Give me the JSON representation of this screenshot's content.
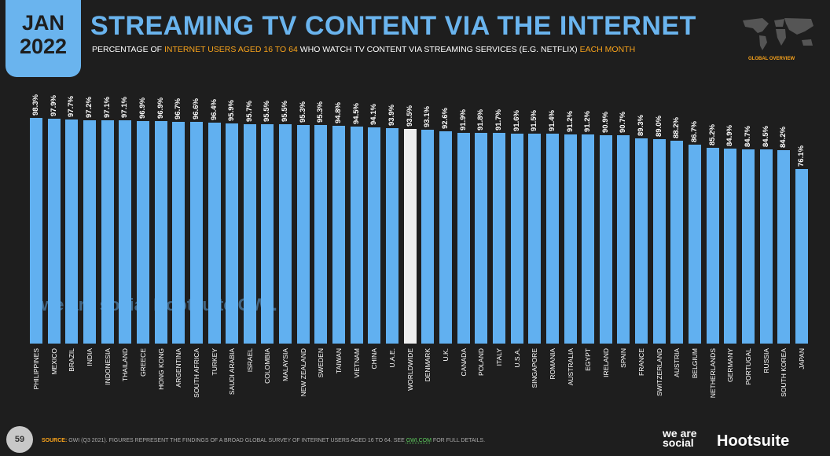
{
  "header": {
    "month": "JAN",
    "year": "2022",
    "title": "STREAMING TV CONTENT VIA THE INTERNET",
    "subtitle_parts": [
      "PERCENTAGE OF ",
      "INTERNET USERS AGED 16 TO 64",
      " WHO WATCH TV CONTENT VIA STREAMING SERVICES (E.G. NETFLIX) ",
      "EACH MONTH"
    ],
    "map_label": "GLOBAL OVERVIEW"
  },
  "watermark": "we are social  Hootsuite  GWI.",
  "footer": {
    "page": "59",
    "source_label": "SOURCE:",
    "source_text": " GWI (Q3 2021). FIGURES REPRESENT THE FINDINGS OF A BROAD GLOBAL SURVEY OF INTERNET USERS AGED 16 TO 64. SEE ",
    "source_link": "GWI.COM",
    "source_end": " FOR FULL DETAILS.",
    "logo1": "we are social",
    "logo2": "Hootsuite"
  },
  "colors": {
    "bar": "#61b0f0",
    "highlight": "#eeeeee",
    "accent": "#f7a21b"
  },
  "chart_data": {
    "type": "bar",
    "title": "STREAMING TV CONTENT VIA THE INTERNET",
    "ylabel": "Percentage",
    "ylim": [
      0,
      100
    ],
    "highlight": "WORLDWIDE",
    "categories": [
      "PHILIPPINES",
      "MEXICO",
      "BRAZIL",
      "INDIA",
      "INDONESIA",
      "THAILAND",
      "GREECE",
      "HONG KONG",
      "ARGENTINA",
      "SOUTH AFRICA",
      "TURKEY",
      "SAUDI ARABIA",
      "ISRAEL",
      "COLOMBIA",
      "MALAYSIA",
      "NEW ZEALAND",
      "SWEDEN",
      "TAIWAN",
      "VIETNAM",
      "CHINA",
      "U.A.E.",
      "WORLDWIDE",
      "DENMARK",
      "U.K.",
      "CANADA",
      "POLAND",
      "ITALY",
      "U.S.A.",
      "SINGAPORE",
      "ROMANIA",
      "AUSTRALIA",
      "EGYPT",
      "IRELAND",
      "SPAIN",
      "FRANCE",
      "SWITZERLAND",
      "AUSTRIA",
      "BELGIUM",
      "NETHERLANDS",
      "GERMANY",
      "PORTUGAL",
      "RUSSIA",
      "SOUTH KOREA",
      "JAPAN"
    ],
    "values": [
      98.3,
      97.9,
      97.7,
      97.2,
      97.1,
      97.1,
      96.9,
      96.9,
      96.7,
      96.6,
      96.4,
      95.9,
      95.7,
      95.5,
      95.5,
      95.3,
      95.3,
      94.8,
      94.5,
      94.1,
      93.9,
      93.5,
      93.1,
      92.6,
      91.9,
      91.8,
      91.7,
      91.6,
      91.5,
      91.4,
      91.2,
      91.2,
      90.9,
      90.7,
      89.3,
      89.0,
      88.2,
      86.7,
      85.2,
      84.9,
      84.7,
      84.5,
      84.2,
      76.1
    ]
  }
}
